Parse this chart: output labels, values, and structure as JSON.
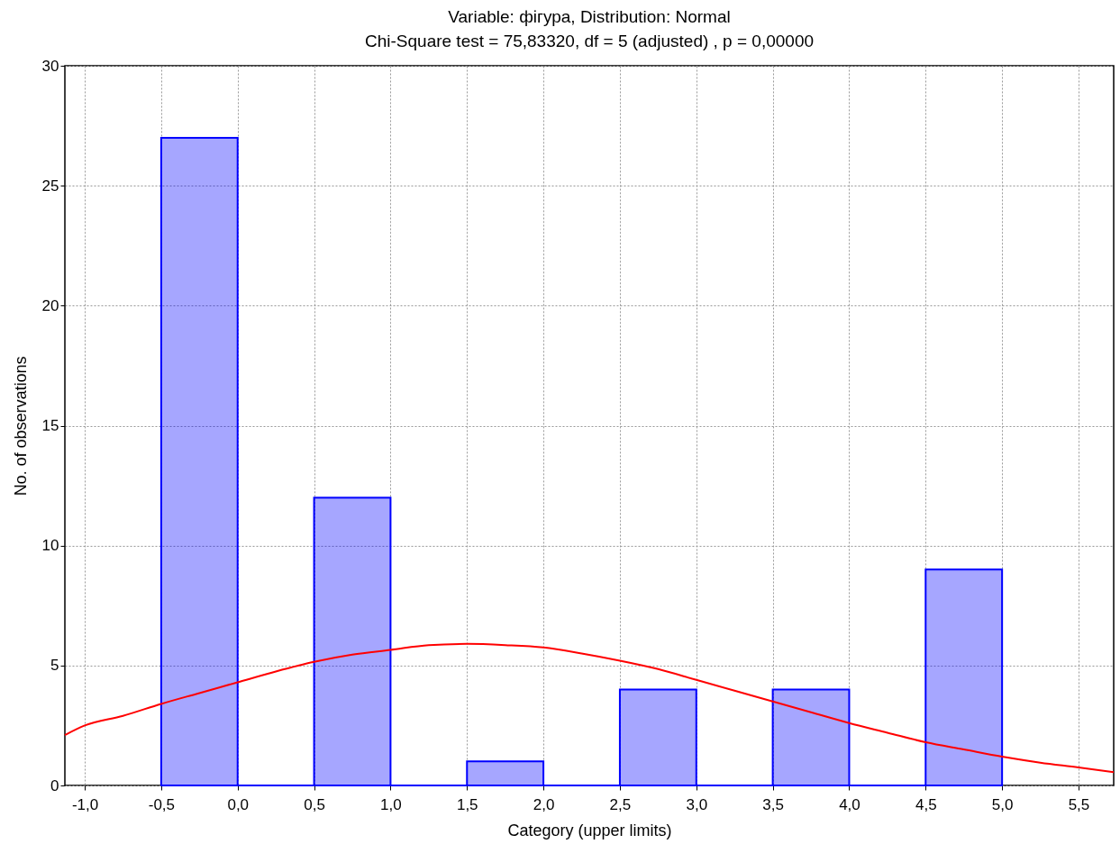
{
  "chart_data": {
    "type": "histogram",
    "title": "Variable: фігура, Distribution: Normal",
    "subtitle": "Chi-Square test = 75,83320, df = 5 (adjusted) , p = 0,00000",
    "xlabel": "Category (upper limits)",
    "ylabel": "No. of observations",
    "bins": [
      -0.5,
      0,
      0.5,
      1,
      1.5,
      2,
      2.5,
      3,
      3.5,
      4,
      4.5,
      5
    ],
    "series": [
      {
        "color": "#0000ff",
        "values": [
          27,
          0,
          12,
          0,
          1,
          0,
          4,
          0,
          4,
          0,
          9
        ]
      },
      {
        "type": "line",
        "color": "#ff0000",
        "x": [
          -1.13,
          -1.0,
          -0.75,
          -0.5,
          -0.25,
          0,
          0.25,
          0.5,
          0.75,
          1.0,
          1.25,
          1.5,
          1.75,
          2.0,
          2.25,
          2.5,
          2.75,
          3.0,
          3.25,
          3.5,
          3.75,
          4.0,
          4.25,
          4.5,
          4.75,
          5.0,
          5.25,
          5.5,
          5.73
        ],
        "values": [
          2.1,
          2.5,
          2.9,
          3.4,
          3.85,
          4.3,
          4.75,
          5.15,
          5.45,
          5.65,
          5.85,
          5.9,
          5.85,
          5.75,
          5.5,
          5.2,
          4.85,
          4.4,
          3.95,
          3.5,
          3.05,
          2.6,
          2.2,
          1.8,
          1.5,
          1.2,
          0.95,
          0.75,
          0.55
        ]
      }
    ],
    "xlim": [
      -1.13,
      5.73
    ],
    "xticks": [
      {
        "value": -1,
        "label": "-1,0"
      },
      {
        "value": -0.5,
        "label": "-0,5"
      },
      {
        "value": 0,
        "label": "0,0"
      },
      {
        "value": 0.5,
        "label": "0,5"
      },
      {
        "value": 1,
        "label": "1,0"
      },
      {
        "value": 1.5,
        "label": "1,5"
      },
      {
        "value": 2,
        "label": "2,0"
      },
      {
        "value": 2.5,
        "label": "2,5"
      },
      {
        "value": 3,
        "label": "3,0"
      },
      {
        "value": 3.5,
        "label": "3,5"
      },
      {
        "value": 4,
        "label": "4,0"
      },
      {
        "value": 4.5,
        "label": "4,5"
      },
      {
        "value": 5,
        "label": "5,0"
      },
      {
        "value": 5.5,
        "label": "5,5"
      }
    ],
    "ylim": [
      0,
      30
    ],
    "yticks": [
      0,
      5,
      10,
      15,
      20,
      25,
      30
    ],
    "grid": true,
    "line_style": "solid",
    "marker": "none"
  }
}
